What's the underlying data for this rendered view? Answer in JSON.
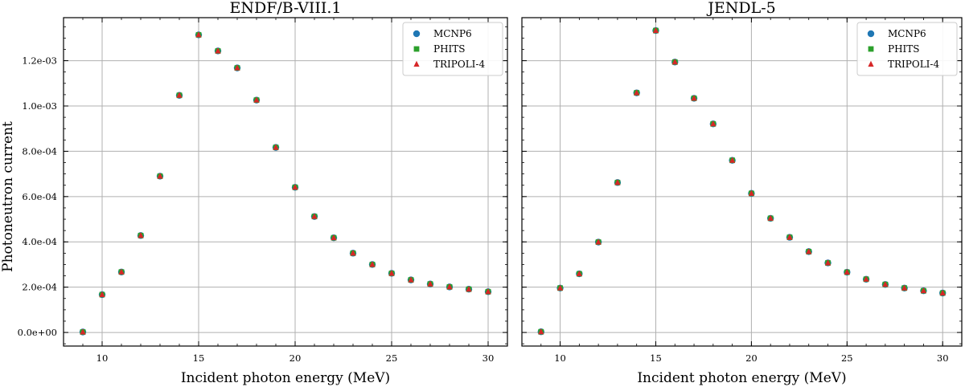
{
  "shared": {
    "ylabel": "Photoneutron current",
    "xlabel": "Incident photon energy (MeV)",
    "legend": [
      "MCNP6",
      "PHITS",
      "TRIPOLI-4"
    ],
    "series_colors": {
      "MCNP6": "#1f77b4",
      "PHITS": "#2ca02c",
      "TRIPOLI-4": "#d62728"
    },
    "xticks": [
      "10",
      "15",
      "20",
      "25",
      "30"
    ],
    "yticks": [
      "0.0e+00",
      "2.0e-04",
      "4.0e-04",
      "6.0e-04",
      "8.0e-04",
      "1.0e-03",
      "1.2e-03"
    ]
  },
  "chart_data": [
    {
      "type": "scatter",
      "title": "ENDF/B-VIII.1",
      "xlabel": "Incident photon energy (MeV)",
      "ylabel": "Photoneutron current",
      "xlim": [
        8,
        31
      ],
      "ylim": [
        -6e-05,
        0.00139
      ],
      "grid": true,
      "legend_position": "top-right",
      "x": [
        9,
        10,
        11,
        12,
        13,
        14,
        15,
        16,
        17,
        18,
        19,
        20,
        21,
        22,
        23,
        24,
        25,
        26,
        27,
        28,
        29,
        30
      ],
      "series": [
        {
          "name": "MCNP6",
          "marker": "circle",
          "values": [
            2e-06,
            0.000167,
            0.000267,
            0.000428,
            0.00069,
            0.001047,
            0.001314,
            0.001243,
            0.001168,
            0.001026,
            0.000817,
            0.000641,
            0.000512,
            0.000418,
            0.00035,
            0.0003,
            0.000261,
            0.000232,
            0.000214,
            0.000201,
            0.000191,
            0.00018
          ]
        },
        {
          "name": "PHITS",
          "marker": "square",
          "values": [
            2e-06,
            0.000167,
            0.000267,
            0.000428,
            0.00069,
            0.001047,
            0.001314,
            0.001243,
            0.001168,
            0.001026,
            0.000817,
            0.000641,
            0.000512,
            0.000418,
            0.00035,
            0.0003,
            0.000261,
            0.000232,
            0.000214,
            0.000201,
            0.000191,
            0.00018
          ]
        },
        {
          "name": "TRIPOLI-4",
          "marker": "triangle",
          "values": [
            2e-06,
            0.000167,
            0.000267,
            0.000428,
            0.00069,
            0.001047,
            0.001314,
            0.001243,
            0.001168,
            0.001026,
            0.000817,
            0.000641,
            0.000512,
            0.000418,
            0.00035,
            0.0003,
            0.000261,
            0.000232,
            0.000214,
            0.000201,
            0.000191,
            0.00018
          ]
        }
      ]
    },
    {
      "type": "scatter",
      "title": "JENDL-5",
      "xlabel": "Incident photon energy (MeV)",
      "ylabel": "",
      "xlim": [
        8,
        31
      ],
      "ylim": [
        -6e-05,
        0.00139
      ],
      "grid": true,
      "legend_position": "top-right",
      "x": [
        9,
        10,
        11,
        12,
        13,
        14,
        15,
        16,
        17,
        18,
        19,
        20,
        21,
        22,
        23,
        24,
        25,
        26,
        27,
        28,
        29,
        30
      ],
      "series": [
        {
          "name": "MCNP6",
          "marker": "circle",
          "values": [
            3e-06,
            0.000196,
            0.000259,
            0.000399,
            0.000662,
            0.001058,
            0.001333,
            0.001194,
            0.001034,
            0.000921,
            0.00076,
            0.000614,
            0.000504,
            0.00042,
            0.000357,
            0.000307,
            0.000266,
            0.000235,
            0.000212,
            0.000196,
            0.000184,
            0.000174
          ]
        },
        {
          "name": "PHITS",
          "marker": "square",
          "values": [
            3e-06,
            0.000196,
            0.000259,
            0.000399,
            0.000662,
            0.001058,
            0.001333,
            0.001194,
            0.001034,
            0.000921,
            0.00076,
            0.000614,
            0.000504,
            0.00042,
            0.000357,
            0.000307,
            0.000266,
            0.000235,
            0.000212,
            0.000196,
            0.000184,
            0.000174
          ]
        },
        {
          "name": "TRIPOLI-4",
          "marker": "triangle",
          "values": [
            3e-06,
            0.000196,
            0.000259,
            0.000399,
            0.000662,
            0.001058,
            0.001333,
            0.001194,
            0.001034,
            0.000921,
            0.00076,
            0.000614,
            0.000504,
            0.00042,
            0.000357,
            0.000307,
            0.000266,
            0.000235,
            0.000212,
            0.000196,
            0.000184,
            0.000174
          ]
        }
      ]
    }
  ]
}
